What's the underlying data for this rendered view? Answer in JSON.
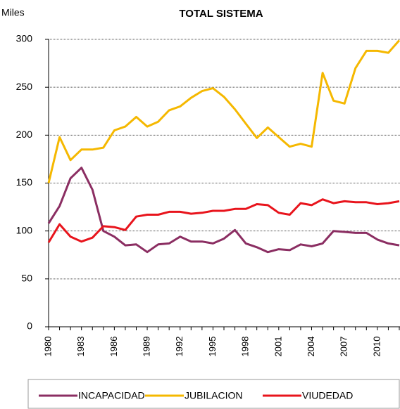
{
  "chart_data": {
    "type": "line",
    "title": "TOTAL SISTEMA",
    "y_label": "Miles",
    "categories": [
      "1980",
      null,
      null,
      "1983",
      null,
      null,
      "1986",
      null,
      null,
      "1989",
      null,
      null,
      "1992",
      null,
      null,
      "1995",
      null,
      null,
      "1998",
      null,
      null,
      "2001",
      null,
      null,
      "2004",
      null,
      null,
      "2007",
      null,
      null,
      "2010",
      null,
      null
    ],
    "series": [
      {
        "name": "INCAPACIDAD",
        "color": "#8b2e62",
        "values": [
          108,
          126,
          155,
          166,
          143,
          100,
          94,
          85,
          86,
          78,
          86,
          87,
          94,
          89,
          89,
          87,
          92,
          101,
          87,
          83,
          78,
          81,
          80,
          86,
          84,
          87,
          100,
          99,
          98,
          98,
          91,
          87,
          85
        ]
      },
      {
        "name": "JUBILACION",
        "color": "#f5b800",
        "values": [
          150,
          198,
          174,
          185,
          185,
          187,
          205,
          209,
          219,
          209,
          214,
          226,
          230,
          239,
          246,
          249,
          240,
          227,
          212,
          197,
          208,
          198,
          188,
          191,
          188,
          265,
          236,
          233,
          270,
          288,
          288,
          286,
          299
        ]
      },
      {
        "name": "VIUDEDAD",
        "color": "#e8141c",
        "values": [
          88,
          107,
          94,
          89,
          93,
          105,
          104,
          101,
          115,
          117,
          117,
          120,
          120,
          118,
          119,
          121,
          121,
          123,
          123,
          128,
          127,
          119,
          117,
          129,
          127,
          133,
          129,
          131,
          130,
          130,
          128,
          129,
          131
        ]
      }
    ],
    "ylim": [
      0,
      300
    ],
    "yticks": [
      0,
      50,
      100,
      150,
      200,
      250,
      300
    ],
    "grid": true,
    "legend": "bottom"
  }
}
